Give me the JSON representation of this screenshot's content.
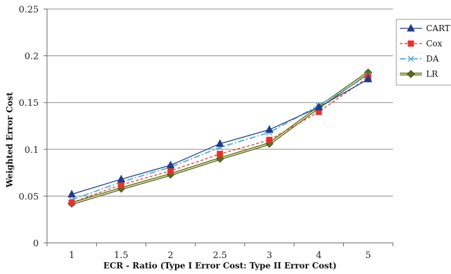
{
  "chart_data": {
    "type": "line",
    "title": "",
    "xlabel": "ECR - Ratio (Type I Error Cost: Type II Error Cost)",
    "ylabel": "Weighted Error Cost",
    "categories": [
      "1",
      "1.5",
      "2",
      "2.5",
      "3",
      "4",
      "5"
    ],
    "ylim": [
      0,
      0.25
    ],
    "yticks": [
      "0",
      "0.05",
      "0.1",
      "0.15",
      "0.2",
      "0.25"
    ],
    "grid": true,
    "legend_position": "right",
    "series": [
      {
        "name": "CART",
        "color": "#1f3a8a",
        "marker": "triangle",
        "dash": "solid",
        "values": [
          0.052,
          0.068,
          0.083,
          0.106,
          0.121,
          0.145,
          0.175
        ]
      },
      {
        "name": "Cox",
        "color": "#e8312b",
        "marker": "square",
        "dash": "dashed",
        "values": [
          0.043,
          0.062,
          0.077,
          0.095,
          0.11,
          0.14,
          0.177
        ]
      },
      {
        "name": "DA",
        "color": "#4fb0d9",
        "marker": "x",
        "dash": "dashdot",
        "values": [
          0.046,
          0.065,
          0.081,
          0.102,
          0.118,
          0.147,
          0.179
        ]
      },
      {
        "name": "LR",
        "color": "#5a6b1f",
        "marker": "diamond",
        "dash": "double",
        "values": [
          0.042,
          0.058,
          0.073,
          0.09,
          0.106,
          0.145,
          0.182
        ]
      }
    ]
  }
}
